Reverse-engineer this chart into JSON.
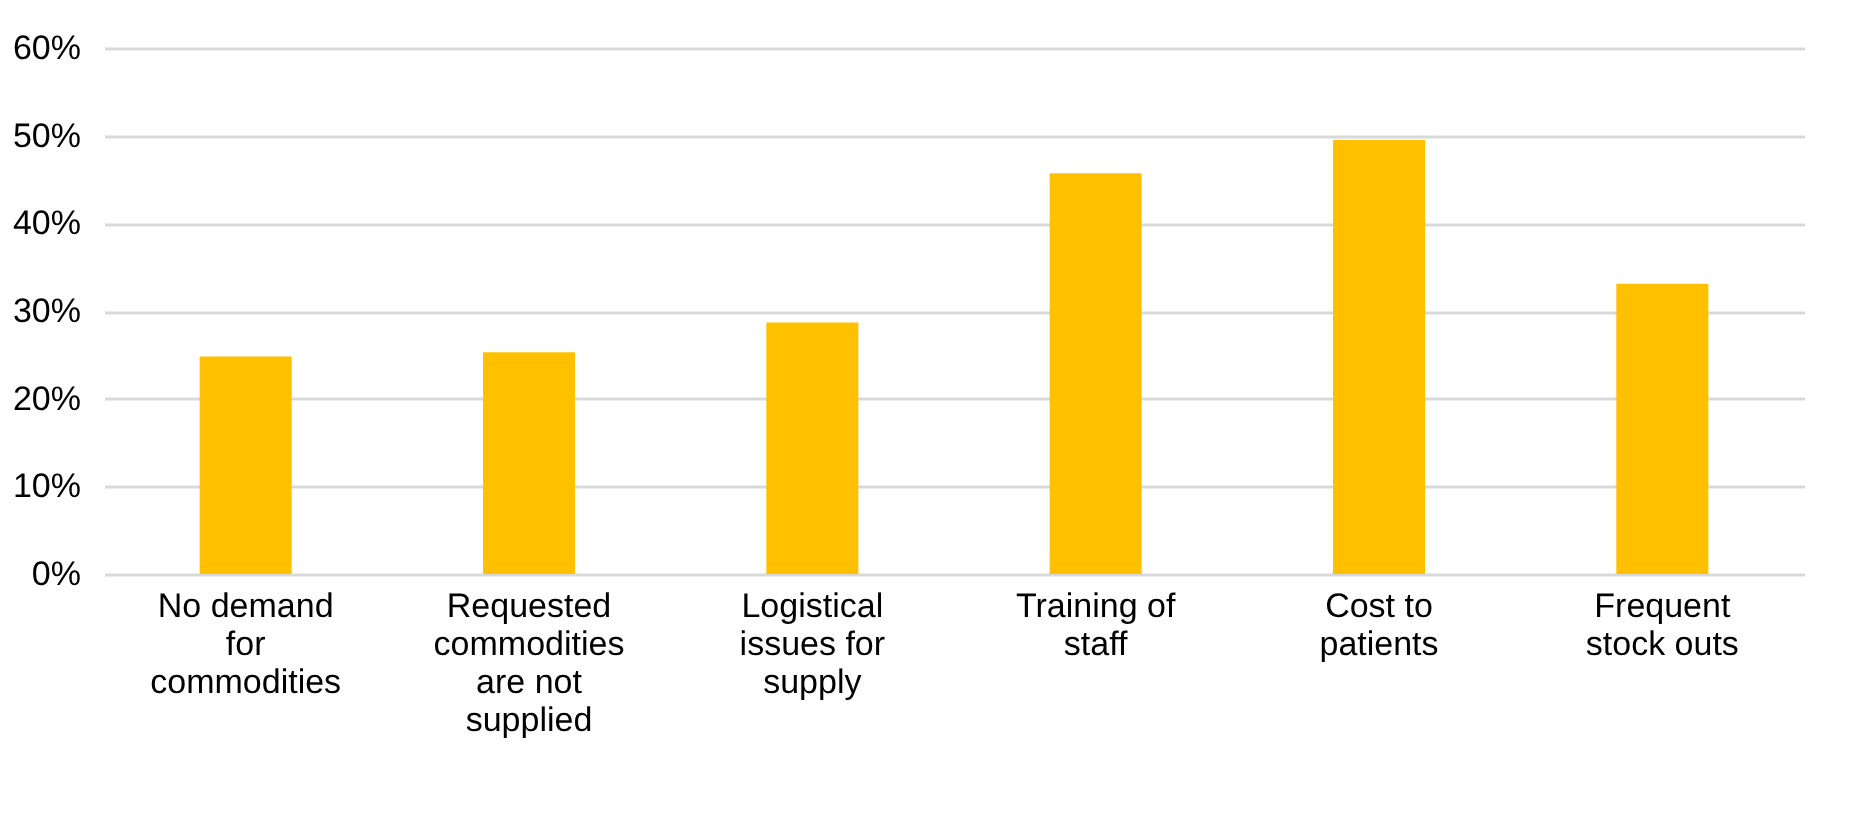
{
  "chart_data": {
    "type": "bar",
    "categories": [
      "No demand for commodities",
      "Requested commodities are not supplied",
      "Logistical issues for supply",
      "Training of staff",
      "Cost to patients",
      "Frequent stock outs"
    ],
    "values": [
      24.8,
      25.3,
      28.7,
      45.7,
      49.5,
      33.1
    ],
    "color": "#ffc000",
    "ylim": [
      0,
      60
    ],
    "yticks": [
      {
        "value": 0,
        "label": "0%"
      },
      {
        "value": 10,
        "label": "10%"
      },
      {
        "value": 20,
        "label": "20%"
      },
      {
        "value": 30,
        "label": "30%"
      },
      {
        "value": 40,
        "label": "40%"
      },
      {
        "value": 50,
        "label": "50%"
      },
      {
        "value": 60,
        "label": "60%"
      }
    ],
    "grid": "y"
  }
}
